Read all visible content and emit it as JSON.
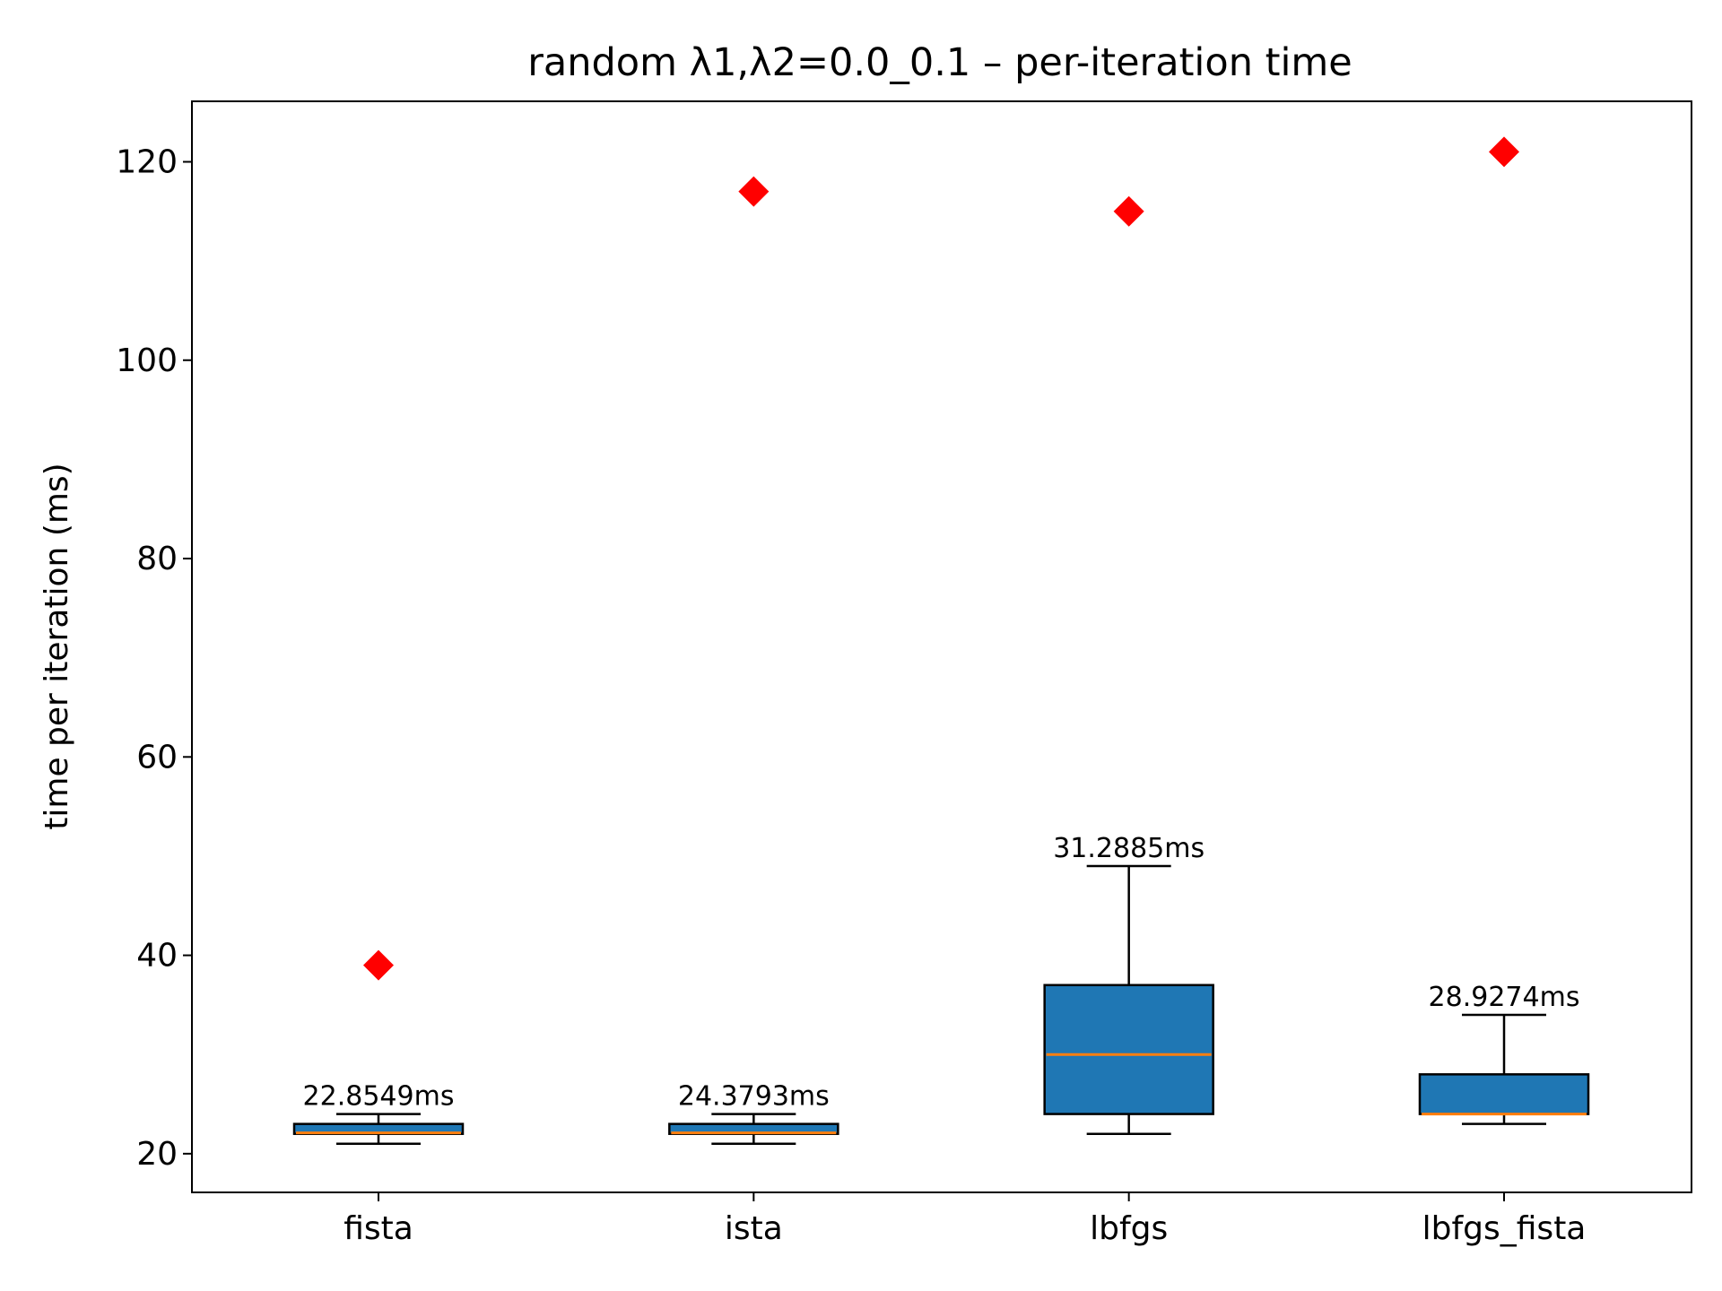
{
  "chart_data": {
    "type": "boxplot",
    "title": "random   λ1,λ2=0.0_0.1  –  per-iteration time",
    "xlabel": "",
    "ylabel": "time per iteration (ms)",
    "ylim": [
      16.1,
      126.1
    ],
    "yticks": [
      20,
      40,
      60,
      80,
      100,
      120
    ],
    "categories": [
      "fista",
      "ista",
      "lbfgs",
      "lbfgs_fista"
    ],
    "series": [
      {
        "category": "fista",
        "whisker_low": 21,
        "q1": 22,
        "median": 22.1,
        "q3": 23,
        "whisker_high": 24,
        "outliers": [
          39
        ],
        "mean_label": "22.8549ms"
      },
      {
        "category": "ista",
        "whisker_low": 21,
        "q1": 22,
        "median": 22.1,
        "q3": 23,
        "whisker_high": 24,
        "outliers": [
          117
        ],
        "mean_label": "24.3793ms"
      },
      {
        "category": "lbfgs",
        "whisker_low": 22,
        "q1": 24,
        "median": 30,
        "q3": 37,
        "whisker_high": 49,
        "outliers": [
          115
        ],
        "mean_label": "31.2885ms"
      },
      {
        "category": "lbfgs_fista",
        "whisker_low": 23,
        "q1": 24,
        "median": 24,
        "q3": 28,
        "whisker_high": 34,
        "outliers": [
          121
        ],
        "mean_label": "28.9274ms"
      }
    ],
    "colors": {
      "box_fill": "#1f77b4",
      "median": "#ff7f0e",
      "outlier": "#ff0000",
      "edge": "#000000"
    },
    "grid": false,
    "legend": "none"
  }
}
